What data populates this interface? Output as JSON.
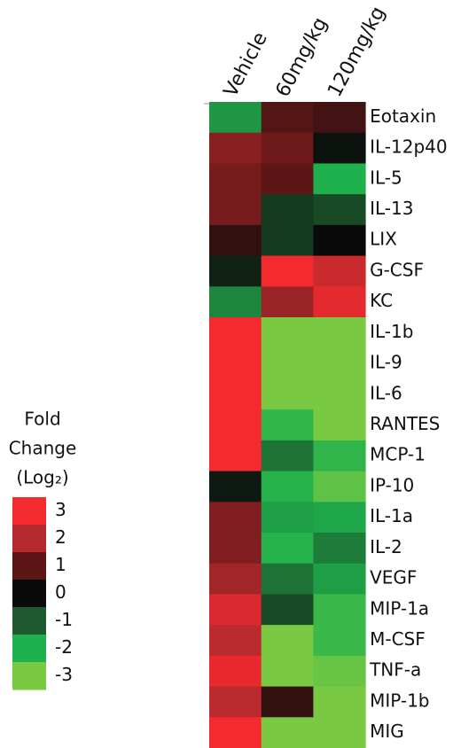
{
  "chart_data": {
    "type": "heatmap",
    "columns": [
      "Vehicle",
      "60mg/kg",
      "120mg/kg"
    ],
    "rows": [
      "Eotaxin",
      "IL-12p40",
      "IL-5",
      "IL-13",
      "LIX",
      "G-CSF",
      "KC",
      "IL-1b",
      "IL-9",
      "IL-6",
      "RANTES",
      "MCP-1",
      "IP-10",
      "IL-1a",
      "IL-2",
      "VEGF",
      "MIP-1a",
      "M-CSF",
      "TNF-a",
      "MIP-1b",
      "MIG"
    ],
    "values": [
      [
        -1.7,
        0.9,
        0.7
      ],
      [
        1.5,
        1.2,
        -0.1
      ],
      [
        1.3,
        1.0,
        -2
      ],
      [
        1.3,
        -0.6,
        -0.8
      ],
      [
        0.5,
        -0.6,
        0
      ],
      [
        -0.3,
        3,
        2.3
      ],
      [
        -1.5,
        1.7,
        2.7
      ],
      [
        3,
        -3,
        -3
      ],
      [
        3,
        -3,
        -3
      ],
      [
        3,
        -3,
        -3
      ],
      [
        3,
        -2.2,
        -3
      ],
      [
        3,
        -1.3,
        -2.2
      ],
      [
        -0.2,
        -2.1,
        -2.7
      ],
      [
        1.4,
        -1.8,
        -1.9
      ],
      [
        1.4,
        -2.1,
        -1.4
      ],
      [
        1.8,
        -1.3,
        -1.8
      ],
      [
        2.6,
        -0.8,
        -2.3
      ],
      [
        2.1,
        -3,
        -2.3
      ],
      [
        2.8,
        -3,
        -2.8
      ],
      [
        2.1,
        0.5,
        -3
      ],
      [
        3,
        -3,
        -3
      ]
    ],
    "legend_title": [
      "Fold",
      "Change",
      "(Log₂)"
    ],
    "colorscale": [
      {
        "value": 3,
        "color": "#f52a2f"
      },
      {
        "value": 2,
        "color": "#b42a2e"
      },
      {
        "value": 1,
        "color": "#5c1616"
      },
      {
        "value": 0,
        "color": "#0a0a0a"
      },
      {
        "value": -1,
        "color": "#1d5a2d"
      },
      {
        "value": -2,
        "color": "#1eb04c"
      },
      {
        "value": -3,
        "color": "#7ac943"
      }
    ]
  }
}
